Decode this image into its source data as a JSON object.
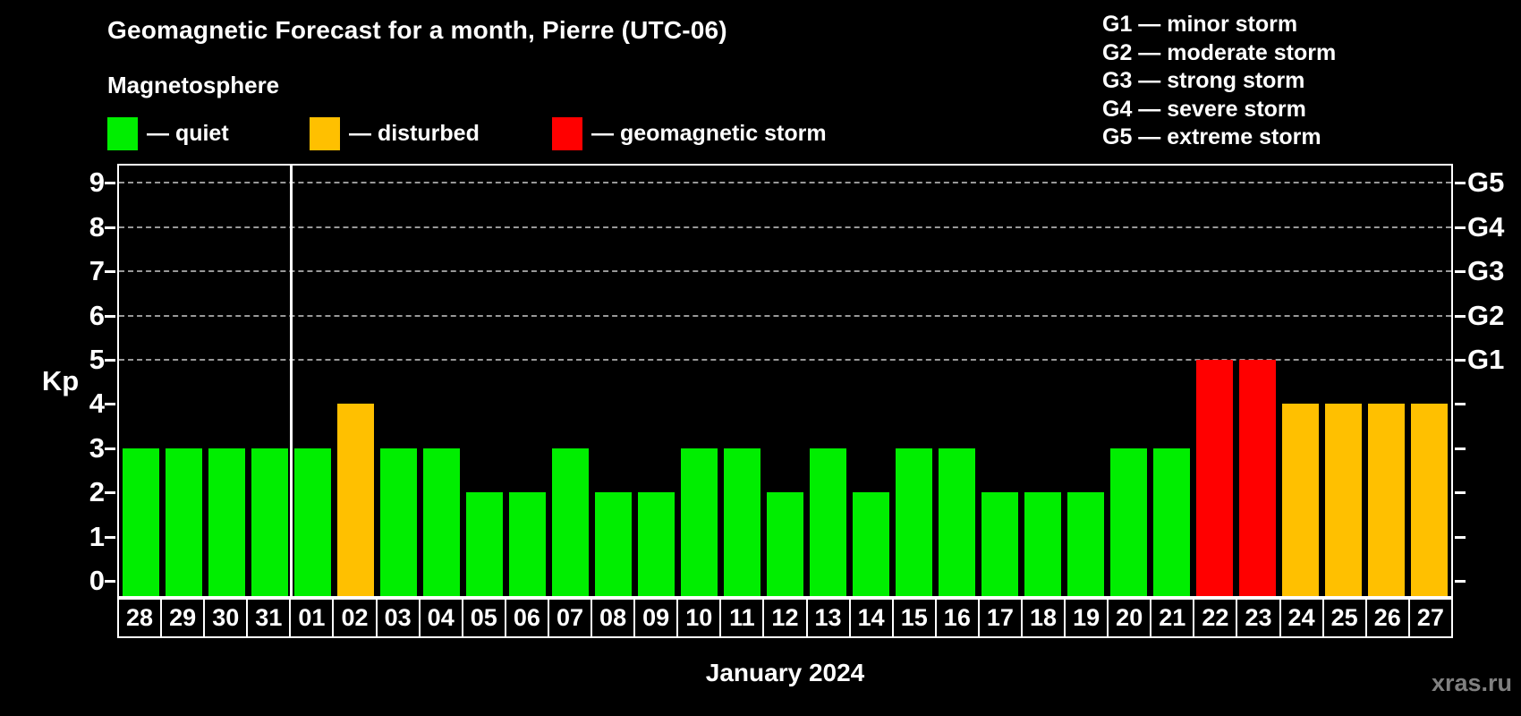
{
  "title": "Geomagnetic Forecast for a month, Pierre (UTC-06)",
  "subtitle": "Magnetosphere",
  "legend": {
    "items": [
      {
        "label": "— quiet",
        "status": "quiet"
      },
      {
        "label": "— disturbed",
        "status": "disturbed"
      },
      {
        "label": "— geomagnetic storm",
        "status": "storm"
      }
    ]
  },
  "g_legend": [
    "G1 — minor storm",
    "G2 — moderate storm",
    "G3 — strong storm",
    "G4 — severe storm",
    "G5 — extreme storm"
  ],
  "colors": {
    "quiet": "#00ee00",
    "disturbed": "#ffc000",
    "storm": "#ff0000",
    "grid": "#999999",
    "axis": "#ffffff",
    "background": "#000000",
    "watermark": "#808080"
  },
  "chart_data": {
    "type": "bar",
    "title": "Geomagnetic Forecast for a month, Pierre (UTC-06)",
    "xlabel": "January 2024",
    "ylabel": "Kp",
    "ylim": [
      0,
      9
    ],
    "grid": "dashed horizontal lines at Kp 5-9 only",
    "legend_position": "top",
    "categories": [
      "28",
      "29",
      "30",
      "31",
      "01",
      "02",
      "03",
      "04",
      "05",
      "06",
      "07",
      "08",
      "09",
      "10",
      "11",
      "12",
      "13",
      "14",
      "15",
      "16",
      "17",
      "18",
      "19",
      "20",
      "21",
      "22",
      "23",
      "24",
      "25",
      "26",
      "27"
    ],
    "values": [
      3,
      3,
      3,
      3,
      3,
      4,
      3,
      3,
      2,
      2,
      3,
      2,
      2,
      3,
      3,
      2,
      3,
      2,
      3,
      3,
      2,
      2,
      2,
      3,
      3,
      5,
      5,
      4,
      4,
      4,
      4
    ],
    "statuses": [
      "quiet",
      "quiet",
      "quiet",
      "quiet",
      "quiet",
      "disturbed",
      "quiet",
      "quiet",
      "quiet",
      "quiet",
      "quiet",
      "quiet",
      "quiet",
      "quiet",
      "quiet",
      "quiet",
      "quiet",
      "quiet",
      "quiet",
      "quiet",
      "quiet",
      "quiet",
      "quiet",
      "quiet",
      "quiet",
      "storm",
      "storm",
      "disturbed",
      "disturbed",
      "disturbed",
      "disturbed"
    ],
    "y_ticks": [
      0,
      1,
      2,
      3,
      4,
      5,
      6,
      7,
      8,
      9
    ],
    "gridlines": [
      5,
      6,
      7,
      8,
      9
    ],
    "right_axis_labels": [
      {
        "value": 5,
        "label": "G1"
      },
      {
        "value": 6,
        "label": "G2"
      },
      {
        "value": 7,
        "label": "G3"
      },
      {
        "value": 8,
        "label": "G4"
      },
      {
        "value": 9,
        "label": "G5"
      }
    ],
    "separator_after_index": 3
  },
  "footer": {
    "month_label": "January 2024",
    "watermark": "xras.ru"
  }
}
